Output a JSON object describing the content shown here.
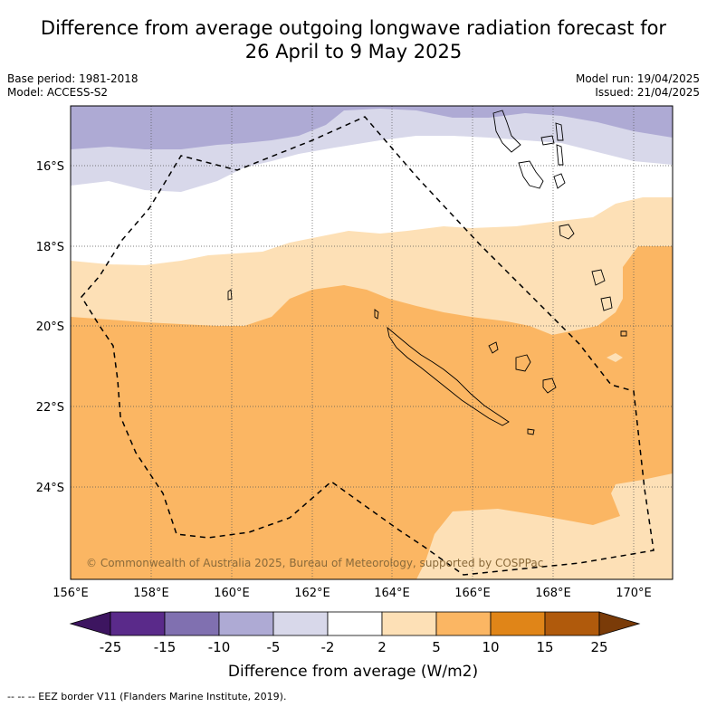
{
  "title": {
    "line1": "Difference from average outgoing longwave radiation forecast for",
    "line2": "26 April to 9 May 2025"
  },
  "meta": {
    "base_period": "Base period: 1981-2018",
    "model": "Model: ACCESS-S2",
    "model_run": "Model run: 19/04/2025",
    "issued": "Issued: 21/04/2025"
  },
  "map": {
    "lat_labels": [
      "16°S",
      "18°S",
      "20°S",
      "22°S",
      "24°S"
    ],
    "lon_labels": [
      "156°E",
      "158°E",
      "160°E",
      "162°E",
      "164°E",
      "166°E",
      "168°E",
      "170°E"
    ],
    "copyright": "© Commonwealth of Australia 2025, Bureau of Meteorology, supported by COSPPac"
  },
  "colorbar": {
    "tick_labels": [
      "-25",
      "-15",
      "-10",
      "-5",
      "-2",
      "2",
      "5",
      "10",
      "15",
      "25"
    ],
    "label": "Difference from average (W/m2)",
    "colors": [
      "#3d1560",
      "#5a2a8a",
      "#8070b0",
      "#aeaad4",
      "#d8d8ea",
      "#ffffff",
      "#fde0b6",
      "#fbb663",
      "#e08518",
      "#b05a0c",
      "#7a3b08"
    ]
  },
  "footnote": "-- -- -- EEZ border V11 (Flanders Marine Institute, 2019)."
}
